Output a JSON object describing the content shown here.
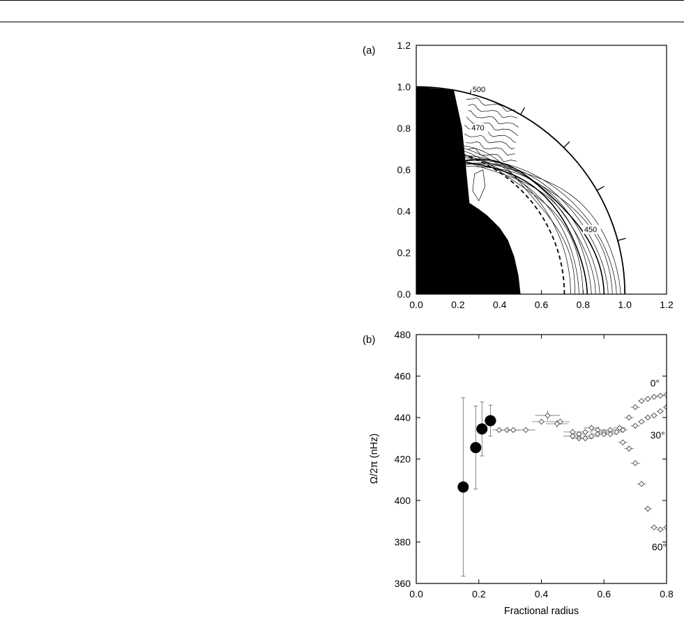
{
  "chart_data": [
    {
      "panel_label": "(a)",
      "type": "contour",
      "xlim": [
        0.0,
        1.2
      ],
      "ylim": [
        0.0,
        1.2
      ],
      "xticks": [
        "0.0",
        "0.2",
        "0.4",
        "0.6",
        "0.8",
        "1.0",
        "1.2"
      ],
      "yticks": [
        "0.0",
        "0.2",
        "0.4",
        "0.6",
        "0.8",
        "1.0",
        "1.2"
      ],
      "contour_labels": [
        {
          "text": "500",
          "x": 0.27,
          "y": 0.975
        },
        {
          "text": "470",
          "x": 0.265,
          "y": 0.79
        },
        {
          "text": "450",
          "x": 0.805,
          "y": 0.3
        }
      ],
      "tachocline_radius": 0.71,
      "surface_radius": 1.0,
      "latitude_tick_marks_deg": [
        15,
        30,
        45,
        60,
        75
      ],
      "excluded_region": "filled black"
    },
    {
      "panel_label": "(b)",
      "type": "scatter",
      "xlabel": "Fractional radius",
      "ylabel": "Ω/2π (nHz)",
      "xlim": [
        0.0,
        0.8
      ],
      "ylim": [
        360,
        480
      ],
      "xticks": [
        "0.0",
        "0.2",
        "0.4",
        "0.6",
        "0.8"
      ],
      "yticks": [
        "360",
        "380",
        "400",
        "420",
        "440",
        "460",
        "480"
      ],
      "annotations": [
        {
          "text": "0°",
          "x": 0.73,
          "y": 455
        },
        {
          "text": "30°",
          "x": 0.73,
          "y": 430
        },
        {
          "text": "60°",
          "x": 0.735,
          "y": 376
        }
      ],
      "filled_points": [
        {
          "x": 0.15,
          "y": 406.5,
          "yerr": 43,
          "xerr": 0.0
        },
        {
          "x": 0.19,
          "y": 425.5,
          "yerr": 20,
          "xerr": 0.0
        },
        {
          "x": 0.21,
          "y": 434.5,
          "yerr": 13,
          "xerr": 0.0
        },
        {
          "x": 0.237,
          "y": 438.5,
          "yerr": 7.5,
          "xerr": 0.02
        }
      ],
      "series": [
        {
          "name": "0°",
          "points": [
            {
              "x": 0.265,
              "y": 434,
              "xerr": 0.02,
              "yerr": 1.0
            },
            {
              "x": 0.29,
              "y": 434,
              "xerr": 0.02,
              "yerr": 1.0
            },
            {
              "x": 0.31,
              "y": 434,
              "xerr": 0.02,
              "yerr": 1.0
            },
            {
              "x": 0.35,
              "y": 434,
              "xerr": 0.03,
              "yerr": 1.2
            },
            {
              "x": 0.4,
              "y": 438,
              "xerr": 0.03,
              "yerr": 1.5
            },
            {
              "x": 0.42,
              "y": 441,
              "xerr": 0.04,
              "yerr": 2.5
            },
            {
              "x": 0.45,
              "y": 437,
              "xerr": 0.035,
              "yerr": 2.0
            },
            {
              "x": 0.46,
              "y": 438,
              "xerr": 0.03,
              "yerr": 1.5
            },
            {
              "x": 0.5,
              "y": 433,
              "xerr": 0.03,
              "yerr": 1.5
            },
            {
              "x": 0.52,
              "y": 432,
              "xerr": 0.025,
              "yerr": 1.5
            },
            {
              "x": 0.54,
              "y": 433,
              "xerr": 0.025,
              "yerr": 1.5
            },
            {
              "x": 0.56,
              "y": 435,
              "xerr": 0.025,
              "yerr": 1.5
            },
            {
              "x": 0.58,
              "y": 434,
              "xerr": 0.02,
              "yerr": 1.5
            },
            {
              "x": 0.6,
              "y": 433,
              "xerr": 0.02,
              "yerr": 1.2
            },
            {
              "x": 0.62,
              "y": 434,
              "xerr": 0.02,
              "yerr": 1.2
            },
            {
              "x": 0.65,
              "y": 435,
              "xerr": 0.02,
              "yerr": 1.0
            },
            {
              "x": 0.68,
              "y": 440,
              "xerr": 0.015,
              "yerr": 1.0
            },
            {
              "x": 0.7,
              "y": 445,
              "xerr": 0.015,
              "yerr": 1.0
            },
            {
              "x": 0.72,
              "y": 448,
              "xerr": 0.012,
              "yerr": 1.0
            },
            {
              "x": 0.74,
              "y": 449,
              "xerr": 0.012,
              "yerr": 1.0
            },
            {
              "x": 0.76,
              "y": 450,
              "xerr": 0.012,
              "yerr": 1.0
            },
            {
              "x": 0.78,
              "y": 450.5,
              "xerr": 0.012,
              "yerr": 1.0
            },
            {
              "x": 0.8,
              "y": 451,
              "xerr": 0.012,
              "yerr": 1.0
            }
          ]
        },
        {
          "name": "30°",
          "points": [
            {
              "x": 0.5,
              "y": 431,
              "xerr": 0.03,
              "yerr": 1.5
            },
            {
              "x": 0.52,
              "y": 430,
              "xerr": 0.025,
              "yerr": 1.5
            },
            {
              "x": 0.54,
              "y": 430,
              "xerr": 0.025,
              "yerr": 1.5
            },
            {
              "x": 0.56,
              "y": 431,
              "xerr": 0.025,
              "yerr": 1.5
            },
            {
              "x": 0.58,
              "y": 432,
              "xerr": 0.02,
              "yerr": 1.5
            },
            {
              "x": 0.6,
              "y": 432,
              "xerr": 0.02,
              "yerr": 1.2
            },
            {
              "x": 0.62,
              "y": 432,
              "xerr": 0.02,
              "yerr": 1.2
            },
            {
              "x": 0.64,
              "y": 433,
              "xerr": 0.02,
              "yerr": 1.2
            },
            {
              "x": 0.66,
              "y": 434,
              "xerr": 0.015,
              "yerr": 1.0
            },
            {
              "x": 0.7,
              "y": 436,
              "xerr": 0.015,
              "yerr": 1.0
            },
            {
              "x": 0.72,
              "y": 438,
              "xerr": 0.012,
              "yerr": 1.0
            },
            {
              "x": 0.74,
              "y": 440,
              "xerr": 0.012,
              "yerr": 1.0
            },
            {
              "x": 0.76,
              "y": 441,
              "xerr": 0.012,
              "yerr": 1.0
            },
            {
              "x": 0.78,
              "y": 443,
              "xerr": 0.012,
              "yerr": 1.0
            },
            {
              "x": 0.8,
              "y": 445,
              "xerr": 0.012,
              "yerr": 1.0
            }
          ]
        },
        {
          "name": "60°",
          "points": [
            {
              "x": 0.66,
              "y": 428,
              "xerr": 0.015,
              "yerr": 1.5
            },
            {
              "x": 0.68,
              "y": 425,
              "xerr": 0.015,
              "yerr": 1.5
            },
            {
              "x": 0.7,
              "y": 418,
              "xerr": 0.015,
              "yerr": 1.5
            },
            {
              "x": 0.72,
              "y": 408,
              "xerr": 0.015,
              "yerr": 1.5
            },
            {
              "x": 0.74,
              "y": 396,
              "xerr": 0.012,
              "yerr": 1.5
            },
            {
              "x": 0.76,
              "y": 387,
              "xerr": 0.012,
              "yerr": 1.2
            },
            {
              "x": 0.78,
              "y": 386,
              "xerr": 0.012,
              "yerr": 1.2
            },
            {
              "x": 0.8,
              "y": 387,
              "xerr": 0.012,
              "yerr": 1.2
            }
          ]
        }
      ]
    }
  ]
}
